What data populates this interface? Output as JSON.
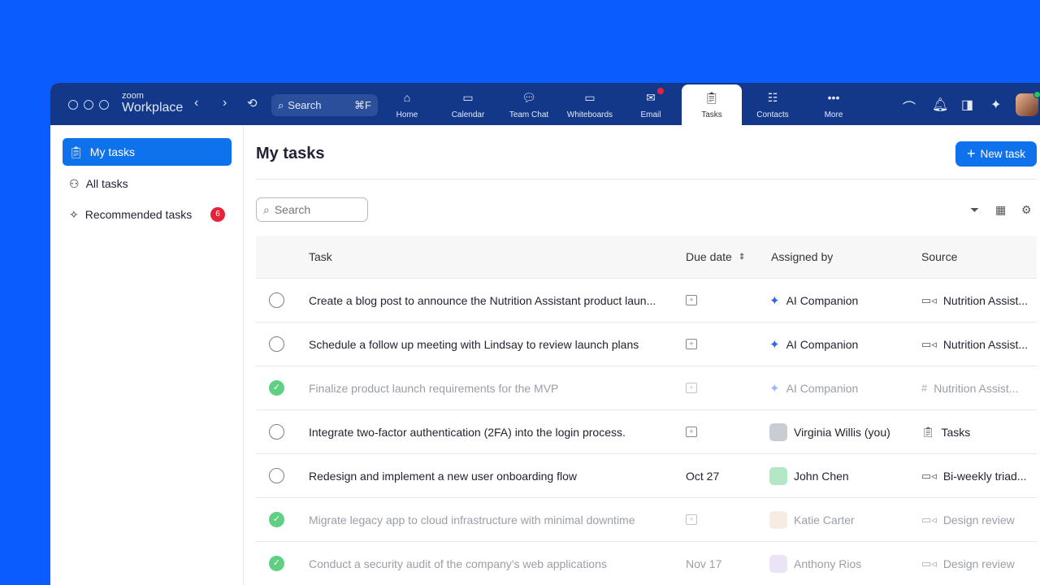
{
  "app": {
    "brand_small": "zoom",
    "brand_large": "Workplace"
  },
  "topbar": {
    "search_label": "Search",
    "search_shortcut": "⌘F",
    "tabs": [
      {
        "label": "Home",
        "icon": "home-icon"
      },
      {
        "label": "Calendar",
        "icon": "calendar-icon"
      },
      {
        "label": "Team Chat",
        "icon": "chat-icon"
      },
      {
        "label": "Whiteboards",
        "icon": "whiteboard-icon"
      },
      {
        "label": "Email",
        "icon": "email-icon",
        "badge": true
      },
      {
        "label": "Tasks",
        "icon": "tasks-icon",
        "active": true
      },
      {
        "label": "Contacts",
        "icon": "contacts-icon"
      },
      {
        "label": "More",
        "icon": "more-icon"
      }
    ]
  },
  "sidebar": {
    "items": [
      {
        "label": "My tasks",
        "active": true
      },
      {
        "label": "All tasks"
      },
      {
        "label": "Recommended tasks",
        "count": "6"
      }
    ]
  },
  "main": {
    "title": "My tasks",
    "new_task_label": "New task",
    "search_placeholder": "Search",
    "columns": {
      "task": "Task",
      "due": "Due date",
      "assigned": "Assigned by",
      "source": "Source"
    },
    "rows": [
      {
        "task": "Create a blog post to announce the Nutrition Assistant product laun...",
        "due": "",
        "assigned": "AI Companion",
        "assigned_type": "ai",
        "source": "Nutrition Assist...",
        "source_icon": "video-icon",
        "done": false
      },
      {
        "task": "Schedule a follow up meeting with Lindsay to review launch plans",
        "due": "",
        "assigned": "AI Companion",
        "assigned_type": "ai",
        "source": "Nutrition Assist...",
        "source_icon": "video-icon",
        "done": false
      },
      {
        "task": "Finalize product launch requirements for the MVP",
        "due": "",
        "assigned": "AI Companion",
        "assigned_type": "ai",
        "source": "Nutrition Assist...",
        "source_icon": "hash-icon",
        "done": true
      },
      {
        "task": "Integrate two-factor authentication (2FA) into the login process.",
        "due": "",
        "assigned": "Virginia Willis (you)",
        "assigned_type": "person",
        "source": "Tasks",
        "source_icon": "tasks-icon",
        "done": false
      },
      {
        "task": "Redesign and implement a new user onboarding flow",
        "due": "Oct 27",
        "assigned": "John Chen",
        "assigned_type": "person",
        "source": "Bi-weekly triad...",
        "source_icon": "video-icon",
        "done": false
      },
      {
        "task": "Migrate legacy app to cloud infrastructure with minimal downtime",
        "due": "",
        "assigned": "Katie Carter",
        "assigned_type": "person",
        "source": "Design review",
        "source_icon": "video-icon",
        "done": true
      },
      {
        "task": "Conduct a security audit of the company's web applications",
        "due": "Nov 17",
        "assigned": "Anthony Rios",
        "assigned_type": "person",
        "source": "Design review",
        "source_icon": "video-icon",
        "done": true
      }
    ]
  },
  "colors": {
    "background": "#0b5cff",
    "titlebar": "#13388a",
    "accent": "#0e72ed",
    "badge": "#e8213b",
    "done": "#5fcf83"
  }
}
